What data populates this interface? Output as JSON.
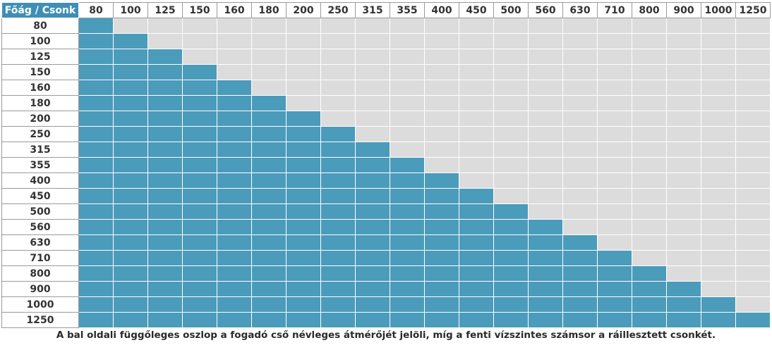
{
  "table": {
    "corner_label": "Főág / Csonk",
    "column_headers": [
      "80",
      "100",
      "125",
      "150",
      "160",
      "180",
      "200",
      "250",
      "315",
      "355",
      "400",
      "450",
      "500",
      "560",
      "630",
      "710",
      "800",
      "900",
      "1000",
      "1250"
    ],
    "row_headers": [
      "80",
      "100",
      "125",
      "150",
      "160",
      "180",
      "200",
      "250",
      "315",
      "355",
      "400",
      "450",
      "500",
      "560",
      "630",
      "710",
      "800",
      "900",
      "1000",
      "1250"
    ],
    "rule": "csonk ≤ főág"
  },
  "colors": {
    "header_bg": "#3f8fb5",
    "filled": "#4b9bbb",
    "empty": "#dcdcdc"
  },
  "caption": "A bal oldali függőleges oszlop a fogadó cső névleges átmérőjét jelöli, míg a fenti vízszintes számsor a ráillesztett csonkét."
}
